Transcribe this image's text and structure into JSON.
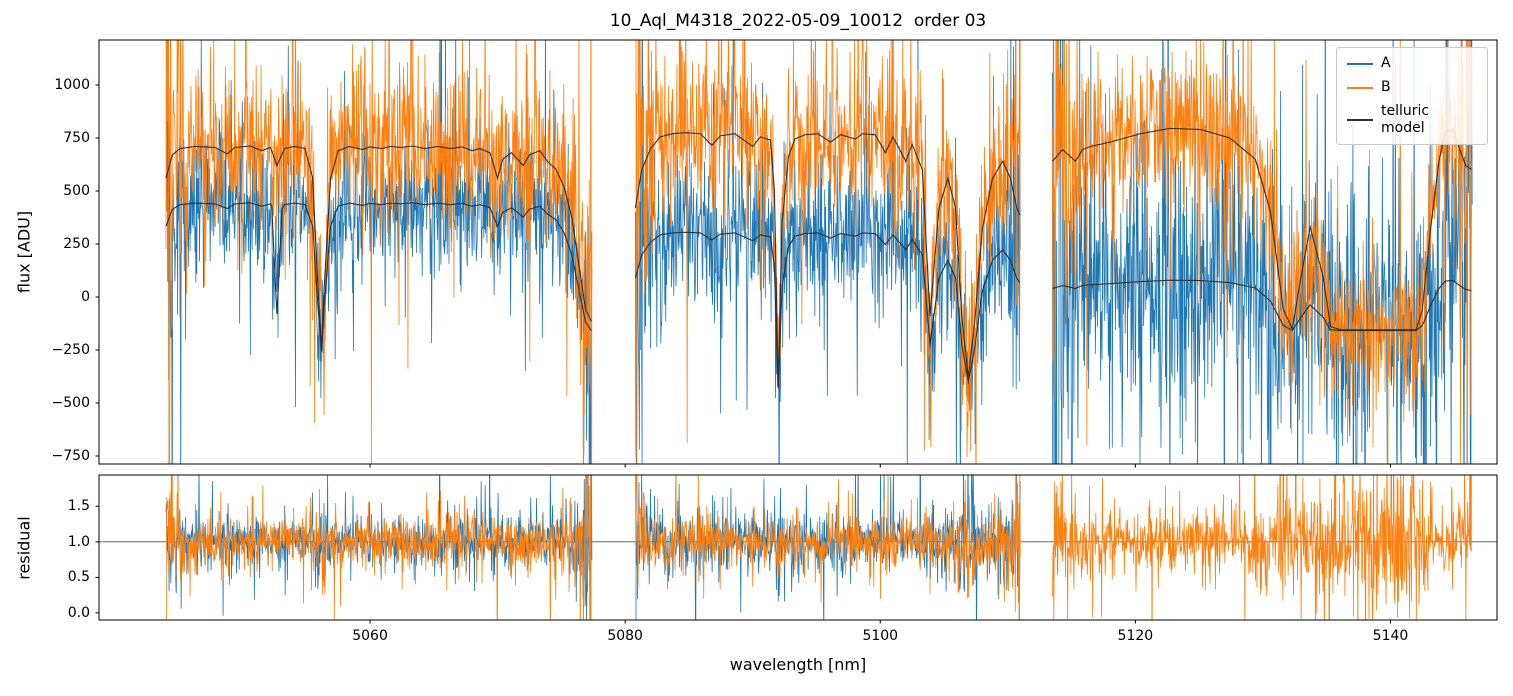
{
  "title": "10_Aql_M4318_2022-05-09_10012  order 03",
  "axes": {
    "x": {
      "label": "wavelength [nm]",
      "lim": [
        5038.75,
        5148.35
      ],
      "ticks": [
        {
          "v": 5060,
          "label": "5060"
        },
        {
          "v": 5080,
          "label": "5080"
        },
        {
          "v": 5100,
          "label": "5100"
        },
        {
          "v": 5120,
          "label": "5120"
        },
        {
          "v": 5140,
          "label": "5140"
        }
      ]
    },
    "top": {
      "ylabel": "flux [ADU]",
      "lim": [
        -788,
        1212
      ],
      "ticks": [
        {
          "v": 1000,
          "label": "1000"
        },
        {
          "v": 750,
          "label": "750"
        },
        {
          "v": 500,
          "label": "500"
        },
        {
          "v": 250,
          "label": "250"
        },
        {
          "v": 0,
          "label": "0"
        },
        {
          "v": -250,
          "label": "−250"
        },
        {
          "v": -500,
          "label": "−500"
        },
        {
          "v": -750,
          "label": "−750"
        }
      ]
    },
    "bottom": {
      "ylabel": "residual",
      "lim": [
        -0.1,
        1.94
      ],
      "ticks": [
        {
          "v": 1.5,
          "label": "1.5"
        },
        {
          "v": 1.0,
          "label": "1.0"
        },
        {
          "v": 0.5,
          "label": "0.5"
        },
        {
          "v": 0.0,
          "label": "0.0"
        }
      ],
      "hline": 1.0
    }
  },
  "legend": {
    "entries": [
      {
        "label": "A",
        "color": "#1f77b4"
      },
      {
        "label": "B",
        "color": "#ff7f0e"
      },
      {
        "label": "telluric model",
        "color": "#2f2f2f"
      }
    ]
  },
  "chart_data": {
    "type": "line",
    "title": "10_Aql_M4318_2022-05-09_10012  order 03",
    "xlabel": "wavelength [nm]",
    "ylabel_top": "flux [ADU]",
    "ylabel_bottom": "residual",
    "xlim": [
      5038.75,
      5148.35
    ],
    "ylim_top": [
      -788,
      1212
    ],
    "ylim_bottom": [
      -0.1,
      1.94
    ],
    "legend": [
      "A",
      "B",
      "telluric model"
    ],
    "colors": {
      "A": "#1f77b4",
      "B": "#ff7f0e",
      "telluric_model": "#2f2f2f",
      "residual_line": "#555555"
    },
    "residual_baseline": 1.0,
    "noise_seed": 77,
    "edge_boost": {
      "flux": [
        4.5,
        0.45
      ],
      "residual": [
        3.5,
        0.4
      ]
    },
    "segments": [
      {
        "range": [
          5044.0,
          5077.4
        ],
        "continuum_B": 710,
        "continuum_A": 435,
        "scale_lower": {
          "floor": -280,
          "s": 0.73
        },
        "noise_flux": {
          "A": 150,
          "B": 185
        },
        "noise_res": {
          "A": 0.16,
          "B": 0.17
        },
        "residual_series": [
          "A",
          "B"
        ],
        "extra_dips_lower": [
          [
            5052.7,
            0.4,
            -80
          ]
        ],
        "telluric_upper": [
          [
            5044.0,
            560
          ],
          [
            5044.5,
            670
          ],
          [
            5045.1,
            700
          ],
          [
            5046.3,
            710
          ],
          [
            5047.85,
            705
          ],
          [
            5048.8,
            675
          ],
          [
            5049.4,
            705
          ],
          [
            5050.6,
            712
          ],
          [
            5051.5,
            690
          ],
          [
            5052.2,
            705
          ],
          [
            5052.7,
            620
          ],
          [
            5053.3,
            700
          ],
          [
            5054.1,
            710
          ],
          [
            5054.9,
            700
          ],
          [
            5055.5,
            560
          ],
          [
            5055.9,
            60
          ],
          [
            5056.2,
            -250
          ],
          [
            5056.4,
            40
          ],
          [
            5056.9,
            560
          ],
          [
            5057.5,
            690
          ],
          [
            5058.4,
            710
          ],
          [
            5059.4,
            695
          ],
          [
            5060.0,
            708
          ],
          [
            5060.9,
            700
          ],
          [
            5061.6,
            710
          ],
          [
            5062.4,
            705
          ],
          [
            5063.3,
            712
          ],
          [
            5064.3,
            700
          ],
          [
            5065.3,
            710
          ],
          [
            5066.3,
            700
          ],
          [
            5067.2,
            708
          ],
          [
            5068.0,
            690
          ],
          [
            5068.6,
            700
          ],
          [
            5069.4,
            680
          ],
          [
            5070.0,
            560
          ],
          [
            5070.4,
            650
          ],
          [
            5071.1,
            680
          ],
          [
            5072.0,
            620
          ],
          [
            5072.5,
            670
          ],
          [
            5073.3,
            690
          ],
          [
            5073.9,
            640
          ],
          [
            5074.6,
            600
          ],
          [
            5075.2,
            520
          ],
          [
            5075.8,
            380
          ],
          [
            5076.4,
            140
          ],
          [
            5076.9,
            -60
          ],
          [
            5077.4,
            -120
          ]
        ]
      },
      {
        "range": [
          5080.8,
          5111.0
        ],
        "continuum_B": 775,
        "continuum_A": 305,
        "scale_lower": {
          "floor": -430,
          "s": 0.61
        },
        "noise_flux": {
          "A": 170,
          "B": 185
        },
        "noise_res": {
          "A": 0.2,
          "B": 0.17
        },
        "residual_series": [
          "A",
          "B"
        ],
        "extra_dips_lower": [],
        "telluric_upper": [
          [
            5080.8,
            420
          ],
          [
            5081.3,
            600
          ],
          [
            5082.0,
            700
          ],
          [
            5082.75,
            755
          ],
          [
            5083.7,
            770
          ],
          [
            5084.7,
            775
          ],
          [
            5085.9,
            770
          ],
          [
            5086.8,
            715
          ],
          [
            5087.45,
            760
          ],
          [
            5088.6,
            770
          ],
          [
            5090.0,
            710
          ],
          [
            5090.6,
            755
          ],
          [
            5091.4,
            740
          ],
          [
            5091.7,
            500
          ],
          [
            5092.0,
            -430
          ],
          [
            5092.3,
            350
          ],
          [
            5092.8,
            660
          ],
          [
            5093.3,
            745
          ],
          [
            5094.1,
            765
          ],
          [
            5095.1,
            770
          ],
          [
            5096.1,
            730
          ],
          [
            5096.9,
            765
          ],
          [
            5098.05,
            745
          ],
          [
            5098.6,
            770
          ],
          [
            5099.6,
            765
          ],
          [
            5100.4,
            680
          ],
          [
            5101.0,
            755
          ],
          [
            5102.0,
            640
          ],
          [
            5102.5,
            720
          ],
          [
            5103.3,
            600
          ],
          [
            5103.9,
            -90
          ],
          [
            5104.6,
            420
          ],
          [
            5105.3,
            560
          ],
          [
            5105.9,
            420
          ],
          [
            5106.4,
            -100
          ],
          [
            5106.9,
            -380
          ],
          [
            5107.4,
            -120
          ],
          [
            5108.0,
            320
          ],
          [
            5108.8,
            560
          ],
          [
            5109.6,
            640
          ],
          [
            5110.2,
            560
          ],
          [
            5110.7,
            420
          ],
          [
            5111.0,
            380
          ]
        ]
      },
      {
        "range": [
          5113.5,
          5146.4
        ],
        "continuum_B": 795,
        "continuum_A": 80,
        "scale_lower": {
          "floor": -160,
          "s": 0.25
        },
        "noise_flux": {
          "A": 300,
          "B": 190
        },
        "noise_res": {
          "A": 0.2,
          "B": 0.2
        },
        "residual_series": [
          "B"
        ],
        "extra_dips_lower": [],
        "telluric_upper": [
          [
            5113.5,
            640
          ],
          [
            5114.3,
            695
          ],
          [
            5115.3,
            640
          ],
          [
            5115.85,
            695
          ],
          [
            5116.5,
            710
          ],
          [
            5118.0,
            730
          ],
          [
            5120.4,
            770
          ],
          [
            5122.7,
            795
          ],
          [
            5125.1,
            790
          ],
          [
            5127.4,
            750
          ],
          [
            5129.4,
            650
          ],
          [
            5130.6,
            400
          ],
          [
            5131.6,
            -60
          ],
          [
            5132.3,
            -150
          ],
          [
            5133.0,
            100
          ],
          [
            5133.7,
            330
          ],
          [
            5134.7,
            100
          ],
          [
            5135.3,
            -140
          ],
          [
            5136.1,
            -155
          ],
          [
            5139.2,
            -155
          ],
          [
            5142.0,
            -155
          ],
          [
            5142.5,
            -60
          ],
          [
            5143.1,
            300
          ],
          [
            5143.8,
            640
          ],
          [
            5144.3,
            780
          ],
          [
            5144.9,
            790
          ],
          [
            5145.4,
            700
          ],
          [
            5145.9,
            620
          ],
          [
            5146.4,
            600
          ]
        ]
      }
    ]
  }
}
